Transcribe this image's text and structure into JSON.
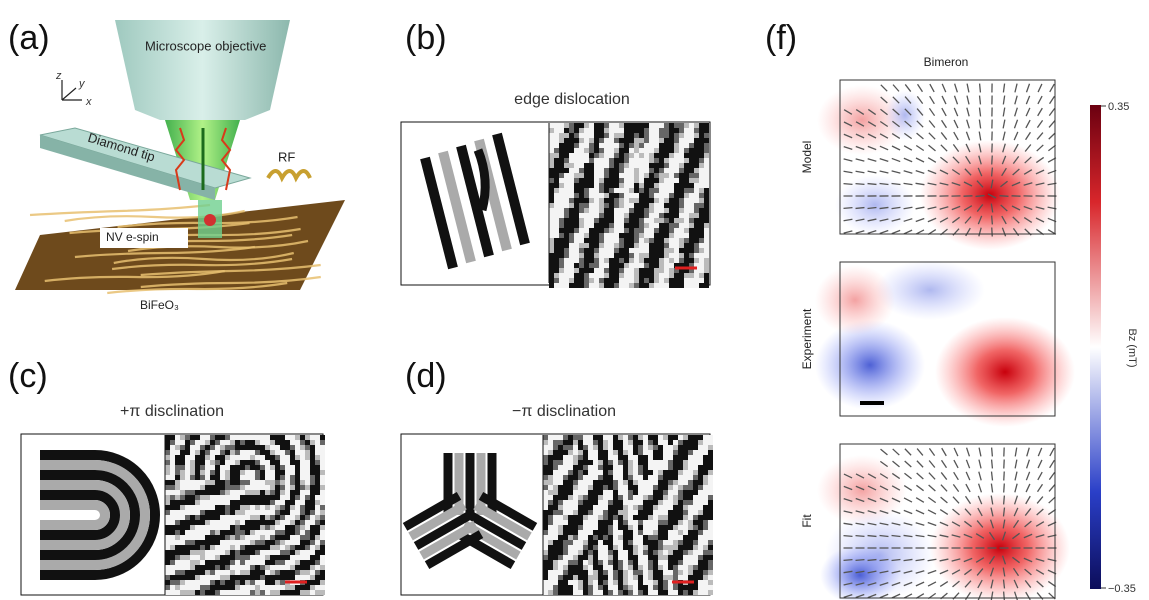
{
  "panel_a": {
    "label": "(a)",
    "objective": "Microscope objective",
    "axis_z": "z",
    "axis_y": "y",
    "axis_x": "x",
    "tip": "Diamond tip",
    "rf": "RF",
    "nv": "NV e-spin",
    "sample": "BiFeO₃"
  },
  "panel_b": {
    "label": "(b)",
    "title": "edge dislocation"
  },
  "panel_c": {
    "label": "(c)",
    "title": "+π disclination"
  },
  "panel_d": {
    "label": "(d)",
    "title": "−π disclination"
  },
  "panel_f": {
    "label": "(f)",
    "title": "Bimeron",
    "rows": [
      "Model",
      "Experiment",
      "Fit"
    ],
    "colorbar": {
      "label": "Bz (mT)",
      "max": "0.35",
      "min": "−0.35"
    }
  }
}
